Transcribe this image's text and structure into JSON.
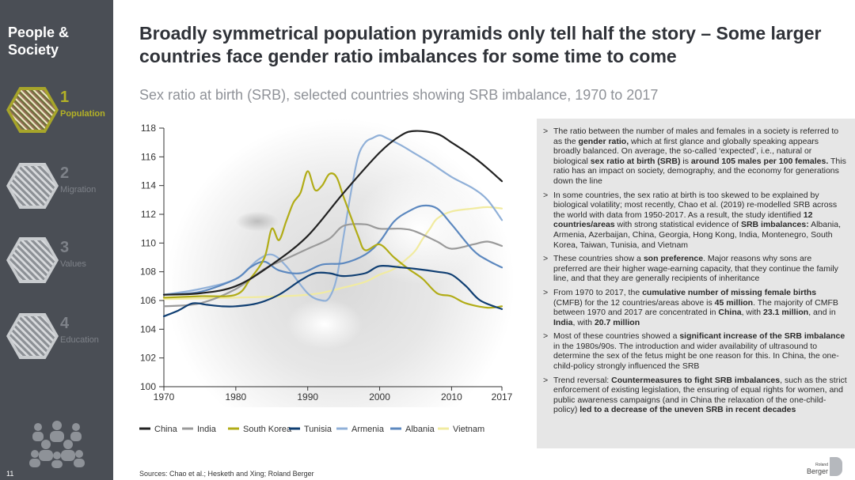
{
  "sidebar": {
    "title": "People & Society",
    "items": [
      {
        "number": "1",
        "label": "Population",
        "active": true
      },
      {
        "number": "2",
        "label": "Migration",
        "active": false
      },
      {
        "number": "3",
        "label": "Values",
        "active": false
      },
      {
        "number": "4",
        "label": "Education",
        "active": false
      }
    ],
    "page_number": "11"
  },
  "header": {
    "title": "Broadly symmetrical population pyramids only tell half the story – Some larger countries face gender ratio imbalances for some time to come",
    "subtitle": "Sex ratio at birth (SRB), selected countries showing SRB imbalance, 1970 to 2017"
  },
  "source": "Sources: Chao et al.; Hesketh and Xing; Roland Berger",
  "logo": {
    "line1": "Roland",
    "line2": "Berger"
  },
  "colors": {
    "China": "#222222",
    "India": "#9a9a9a",
    "South Korea": "#b1ac16",
    "Tunisia": "#0f3e72",
    "Armenia": "#90b0d8",
    "Albania": "#5c88bf",
    "Vietnam": "#f1eba0"
  },
  "chart_data": {
    "type": "line",
    "title": "Sex ratio at birth (SRB), selected countries showing SRB imbalance, 1970 to 2017",
    "xlabel": "",
    "ylabel": "",
    "xlim": [
      1970,
      2017
    ],
    "ylim": [
      100,
      118
    ],
    "x_ticks": [
      1970,
      1980,
      1990,
      2000,
      2010,
      2017
    ],
    "y_ticks": [
      100,
      102,
      104,
      106,
      108,
      110,
      112,
      114,
      116,
      118
    ],
    "grid": false,
    "legend_position": "bottom",
    "series": [
      {
        "name": "China",
        "x": [
          1970,
          1975,
          1980,
          1985,
          1990,
          1995,
          2000,
          2003,
          2005,
          2008,
          2010,
          2013,
          2015,
          2017
        ],
        "y": [
          106.4,
          106.5,
          107.0,
          108.5,
          110.5,
          113.5,
          116.3,
          117.5,
          117.8,
          117.6,
          117.0,
          116.0,
          115.2,
          114.3
        ]
      },
      {
        "name": "India",
        "x": [
          1970,
          1975,
          1980,
          1984,
          1987,
          1990,
          1993,
          1995,
          1998,
          2000,
          2003,
          2005,
          2008,
          2010,
          2013,
          2015,
          2017
        ],
        "y": [
          105.6,
          105.8,
          106.8,
          108.2,
          108.9,
          109.6,
          110.3,
          111.2,
          111.3,
          111.0,
          111.0,
          110.8,
          110.1,
          109.6,
          109.9,
          110.1,
          109.8
        ]
      },
      {
        "name": "South Korea",
        "x": [
          1970,
          1975,
          1980,
          1982,
          1984,
          1985,
          1986,
          1987,
          1988,
          1989,
          1990,
          1991,
          1992,
          1993,
          1994,
          1995,
          1997,
          1998,
          2000,
          2002,
          2004,
          2006,
          2008,
          2010,
          2012,
          2015,
          2017
        ],
        "y": [
          106.2,
          106.3,
          106.4,
          107.5,
          109.0,
          111.0,
          110.2,
          111.5,
          112.8,
          113.5,
          115.0,
          113.7,
          114.0,
          114.8,
          114.6,
          113.2,
          110.5,
          109.5,
          109.9,
          109.0,
          108.2,
          107.5,
          106.5,
          106.3,
          105.8,
          105.5,
          105.6
        ]
      },
      {
        "name": "Tunisia",
        "x": [
          1970,
          1972,
          1974,
          1976,
          1978,
          1980,
          1983,
          1986,
          1989,
          1991,
          1993,
          1995,
          1998,
          2000,
          2003,
          2005,
          2008,
          2010,
          2012,
          2014,
          2017
        ],
        "y": [
          104.9,
          105.3,
          105.8,
          105.7,
          105.6,
          105.6,
          105.8,
          106.4,
          107.4,
          107.9,
          107.9,
          107.7,
          107.9,
          108.4,
          108.3,
          108.2,
          108.0,
          107.8,
          107.0,
          106.0,
          105.4
        ]
      },
      {
        "name": "Armenia",
        "x": [
          1970,
          1975,
          1980,
          1983,
          1985,
          1987,
          1990,
          1992,
          1993,
          1994,
          1995,
          1996,
          1997,
          1998,
          1999,
          2000,
          2001,
          2003,
          2005,
          2007,
          2010,
          2013,
          2015,
          2017
        ],
        "y": [
          106.4,
          106.8,
          107.5,
          108.8,
          109.2,
          108.4,
          106.5,
          106.0,
          106.2,
          107.5,
          110.5,
          113.5,
          116.0,
          117.0,
          117.3,
          117.5,
          117.3,
          116.8,
          116.2,
          115.6,
          114.6,
          113.8,
          113.0,
          111.6
        ]
      },
      {
        "name": "Albania",
        "x": [
          1970,
          1975,
          1980,
          1982,
          1984,
          1986,
          1989,
          1992,
          1995,
          1998,
          2000,
          2002,
          2004,
          2006,
          2008,
          2010,
          2013,
          2015,
          2017
        ],
        "y": [
          106.4,
          106.6,
          107.5,
          108.3,
          108.7,
          108.1,
          107.9,
          108.5,
          108.6,
          109.2,
          110.1,
          111.5,
          112.2,
          112.6,
          112.4,
          111.3,
          109.5,
          108.8,
          108.3
        ]
      },
      {
        "name": "Vietnam",
        "x": [
          1970,
          1980,
          1990,
          1995,
          1998,
          2000,
          2002,
          2004,
          2005,
          2006,
          2007,
          2008,
          2010,
          2013,
          2015,
          2017
        ],
        "y": [
          106.1,
          106.2,
          106.4,
          106.9,
          107.3,
          107.8,
          108.2,
          109.0,
          109.5,
          110.3,
          111.0,
          111.7,
          112.2,
          112.4,
          112.5,
          112.4
        ]
      }
    ]
  },
  "bullets": [
    {
      "html": "The ratio between the number of males and females in a society is referred to as the <b>gender ratio,</b> which at first glance and globally speaking appears broadly balanced. On average, the so-called ‘expected’, i.e., natural or biological <b>sex ratio at birth (SRB)</b> is <b>around 105 males per 100 females.</b> This ratio has an impact on society, demography, and the economy for generations down the line"
    },
    {
      "html": "In some countries, the sex ratio at birth is too skewed to be explained by biological volatility; most recently, Chao et al. (2019) re-modelled SRB across the world with data from 1950-2017. As a result, the study identified <b>12 countries/areas</b> with strong statistical evidence of <b>SRB imbalances:</b> Albania, Armenia, Azerbaijan, China, Georgia, Hong Kong, India, Montenegro, South Korea, Taiwan, Tunisia, and Vietnam"
    },
    {
      "html": "These countries show a <b>son preference</b>. Major reasons why sons are preferred are their higher wage-earning capacity, that they continue the family line, and that they are generally recipients of inheritance"
    },
    {
      "html": "From 1970 to 2017, the <b>cumulative number of missing female births</b> (CMFB) for the 12 countries/areas above is <b>45 million</b>. The majority of CMFB between 1970 and 2017 are concentrated in <b>China</b>, with <b>23.1 million</b>, and in <b>India</b>, with <b>20.7 million</b>"
    },
    {
      "html": "Most of these countries showed a <b>significant increase of the SRB imbalance</b> in the 1980s/90s. The introduction and wider availability of ultrasound to determine the sex of the fetus might be one reason for this. In China, the one-child-policy strongly influenced the SRB"
    },
    {
      "html": "Trend reversal: <b>Countermeasures to fight SRB imbalances</b>, such as the strict enforcement of existing legislation, the ensuring of equal rights for women, and public awareness campaigns (and in China the relaxation of the one-child-policy) <b>led to a decrease of the uneven SRB in recent decades</b>"
    }
  ]
}
